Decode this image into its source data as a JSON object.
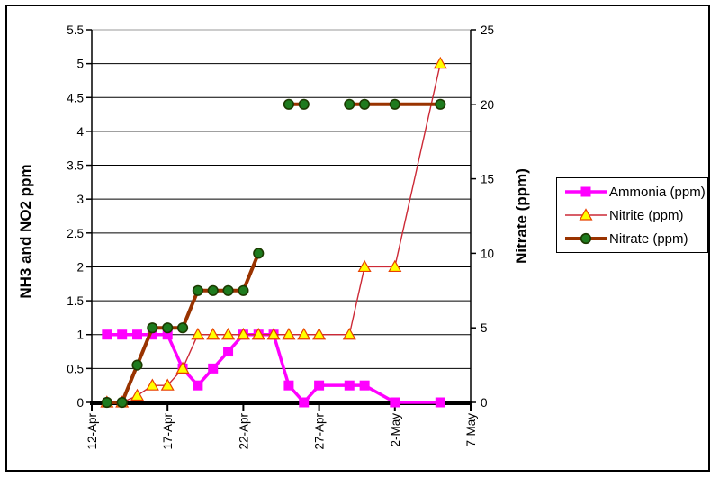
{
  "window": {
    "background": "#FFFFFF",
    "border_color": "#000000"
  },
  "chart_data": {
    "type": "line",
    "title": "",
    "x_axis": {
      "tick_labels": [
        "12-Apr",
        "17-Apr",
        "22-Apr",
        "27-Apr",
        "2-May",
        "7-May"
      ],
      "tick_day_offsets": [
        0,
        5,
        10,
        15,
        20,
        25
      ],
      "range_days": 25,
      "grid": "horizontal-only"
    },
    "y_left": {
      "label": "NH3 and NO2 ppm",
      "min": 0,
      "max": 5.5,
      "step": 0.5,
      "tick_labels": [
        "0",
        "0.5",
        "1",
        "1.5",
        "2",
        "2.5",
        "3",
        "3.5",
        "4",
        "4.5",
        "5",
        "5.5"
      ]
    },
    "y_right": {
      "label": "Nitrate (ppm)",
      "min": 0,
      "max": 25,
      "step": 5,
      "tick_labels": [
        "0",
        "5",
        "10",
        "15",
        "20",
        "25"
      ]
    },
    "series": [
      {
        "name": "Ammonia (ppm)",
        "key": "ammonia",
        "axis": "left",
        "line_color": "#FF00FF",
        "line_width": 3.5,
        "marker": "square",
        "marker_fill": "#FF00FF",
        "marker_stroke": "#FF00FF",
        "segments": [
          [
            [
              "13-Apr",
              1
            ],
            [
              "14-Apr",
              1
            ],
            [
              "15-Apr",
              1
            ],
            [
              "16-Apr",
              1
            ],
            [
              "17-Apr",
              1
            ],
            [
              "18-Apr",
              0.5
            ],
            [
              "19-Apr",
              0.25
            ],
            [
              "20-Apr",
              0.5
            ],
            [
              "21-Apr",
              0.75
            ],
            [
              "22-Apr",
              1
            ],
            [
              "23-Apr",
              1
            ],
            [
              "24-Apr",
              1
            ],
            [
              "25-Apr",
              0.25
            ],
            [
              "26-Apr",
              0
            ],
            [
              "27-Apr",
              0.25
            ],
            [
              "29-Apr",
              0.25
            ],
            [
              "30-Apr",
              0.25
            ],
            [
              "2-May",
              0
            ],
            [
              "5-May",
              0
            ]
          ]
        ]
      },
      {
        "name": "Nitrite (ppm)",
        "key": "nitrite",
        "axis": "left",
        "line_color": "#CC2936",
        "line_width": 1.4,
        "marker": "triangle",
        "marker_fill": "#FFFF00",
        "marker_stroke": "#E84000",
        "segments": [
          [
            [
              "13-Apr",
              0
            ],
            [
              "14-Apr",
              0
            ],
            [
              "15-Apr",
              0.1
            ],
            [
              "16-Apr",
              0.25
            ],
            [
              "17-Apr",
              0.25
            ],
            [
              "18-Apr",
              0.5
            ],
            [
              "19-Apr",
              1
            ],
            [
              "20-Apr",
              1
            ],
            [
              "21-Apr",
              1
            ],
            [
              "22-Apr",
              1
            ],
            [
              "23-Apr",
              1
            ],
            [
              "24-Apr",
              1
            ],
            [
              "25-Apr",
              1
            ],
            [
              "26-Apr",
              1
            ],
            [
              "27-Apr",
              1
            ],
            [
              "29-Apr",
              1
            ],
            [
              "30-Apr",
              2
            ],
            [
              "2-May",
              2
            ],
            [
              "5-May",
              5
            ]
          ]
        ]
      },
      {
        "name": "Nitrate (ppm)",
        "key": "nitrate",
        "axis": "right",
        "line_color": "#993300",
        "line_width": 4,
        "marker": "circle",
        "marker_fill": "#1E7B1E",
        "marker_stroke": "#1C3A00",
        "segments": [
          [
            [
              "13-Apr",
              0
            ],
            [
              "14-Apr",
              0
            ],
            [
              "15-Apr",
              2.5
            ],
            [
              "16-Apr",
              5
            ],
            [
              "17-Apr",
              5
            ],
            [
              "18-Apr",
              5
            ],
            [
              "19-Apr",
              7.5
            ],
            [
              "20-Apr",
              7.5
            ],
            [
              "21-Apr",
              7.5
            ],
            [
              "22-Apr",
              7.5
            ],
            [
              "23-Apr",
              10
            ]
          ],
          [
            [
              "25-Apr",
              20
            ],
            [
              "26-Apr",
              20
            ]
          ],
          [
            [
              "29-Apr",
              20
            ],
            [
              "30-Apr",
              20
            ],
            [
              "2-May",
              20
            ],
            [
              "5-May",
              20
            ]
          ]
        ]
      }
    ],
    "legend": {
      "position": "right",
      "items": [
        {
          "label": "Ammonia (ppm)",
          "icon": "square-marker-icon",
          "color": "#FF00FF"
        },
        {
          "label": "Nitrite (ppm)",
          "icon": "triangle-marker-icon",
          "color": "#CC2936"
        },
        {
          "label": "Nitrate (ppm)",
          "icon": "circle-marker-icon",
          "color": "#993300"
        }
      ]
    }
  }
}
